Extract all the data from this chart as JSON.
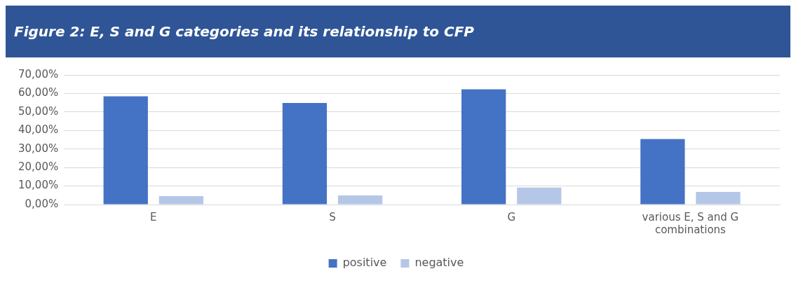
{
  "chart_data": {
    "type": "bar",
    "title": "Figure 2: E, S and G categories and its relationship to CFP",
    "categories": [
      "E",
      "S",
      "G",
      "various E, S and G combinations"
    ],
    "series": [
      {
        "name": "positive",
        "color": "#4472c4",
        "values": [
          58.5,
          54.9,
          62.2,
          35.4
        ]
      },
      {
        "name": "negative",
        "color": "#b4c7e7",
        "values": [
          4.5,
          4.9,
          9.2,
          6.8
        ]
      }
    ],
    "ylim": [
      0,
      70
    ],
    "yticks": [
      {
        "value": 0,
        "label": "0,00%"
      },
      {
        "value": 10,
        "label": "10,00%"
      },
      {
        "value": 20,
        "label": "20,00%"
      },
      {
        "value": 30,
        "label": "30,00%"
      },
      {
        "value": 40,
        "label": "40,00%"
      },
      {
        "value": 50,
        "label": "50,00%"
      },
      {
        "value": 60,
        "label": "60,00%"
      },
      {
        "value": 70,
        "label": "70,00%"
      }
    ],
    "grid": "y",
    "legend": "bottom"
  }
}
